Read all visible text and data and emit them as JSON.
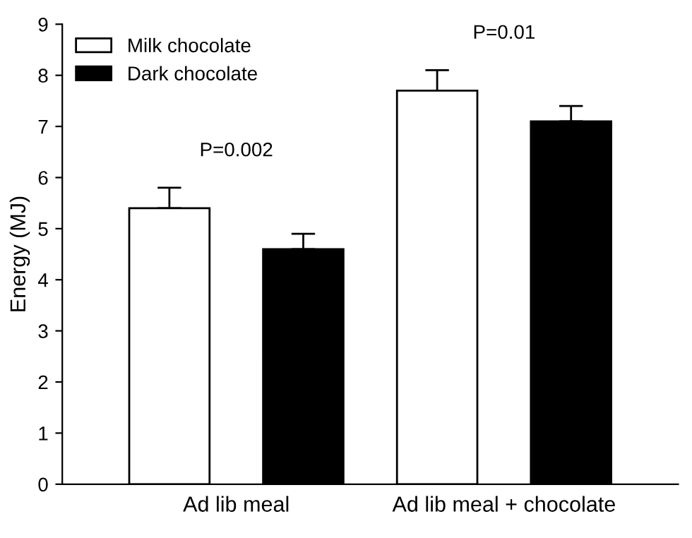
{
  "chart_data": {
    "type": "bar",
    "ylabel": "Energy (MJ)",
    "categories": [
      "Ad lib meal",
      "Ad lib meal + chocolate"
    ],
    "series": [
      {
        "name": "Milk chocolate",
        "color": "#ffffff",
        "values": [
          5.4,
          7.7
        ],
        "errors": [
          [
            5.4,
            5.8
          ],
          [
            7.7,
            8.1
          ]
        ]
      },
      {
        "name": "Dark chocolate",
        "color": "#000000",
        "values": [
          4.6,
          7.1
        ],
        "errors": [
          [
            4.6,
            4.9
          ],
          [
            7.1,
            7.4
          ]
        ]
      }
    ],
    "ylim": [
      0,
      9
    ],
    "yticks": [
      0,
      1,
      2,
      3,
      4,
      5,
      6,
      7,
      8,
      9
    ],
    "grid": false,
    "legend": "top left",
    "annotations": [
      "P=0.002",
      "P=0.01"
    ]
  }
}
